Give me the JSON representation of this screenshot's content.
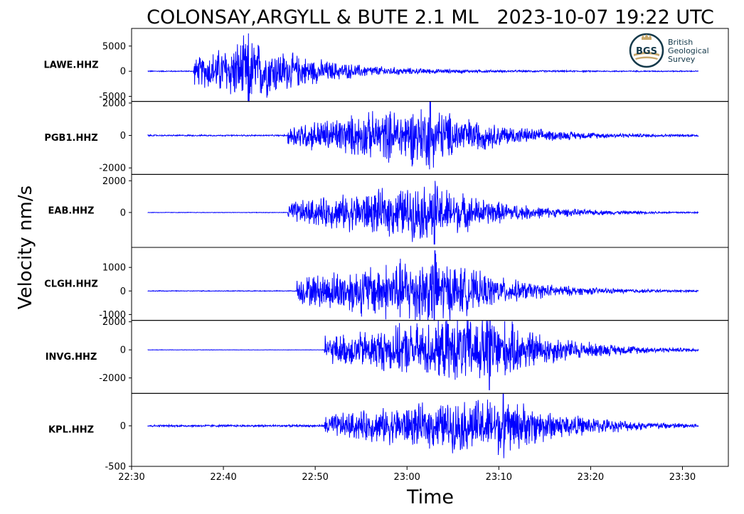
{
  "chart_data": {
    "type": "line",
    "title": "COLONSAY,ARGYLL & BUTE 2.1 ML   2023-10-07 19:22 UTC",
    "xlabel": "Time",
    "ylabel": "Velocity nm/s",
    "x_ticks": [
      "22:30",
      "22:40",
      "22:50",
      "23:00",
      "23:10",
      "23:20",
      "23:30"
    ],
    "x_range": [
      "22:30",
      "23:35"
    ],
    "trace_time_range": [
      "22:31:45",
      "23:31:45"
    ],
    "line_color": "#0000ff",
    "grid": false,
    "logo": {
      "label": "BGS",
      "text_lines": [
        "British",
        "Geological",
        "Survey"
      ]
    },
    "series": [
      {
        "name": "LAWE.HHZ",
        "ylim": [
          -6000,
          8500
        ],
        "yticks": [
          {
            "v": 5000,
            "label": "5000"
          },
          {
            "v": 0,
            "label": "0"
          },
          {
            "v": -5000,
            "label": "-5000"
          }
        ],
        "arrival": "22:36:45",
        "peak_time": "22:42:45",
        "peak": 7900,
        "noise": 120
      },
      {
        "name": "PGB1.HHZ",
        "ylim": [
          -2400,
          2100
        ],
        "yticks": [
          {
            "v": 2000,
            "label": "2000"
          },
          {
            "v": 0,
            "label": "0"
          },
          {
            "v": -2000,
            "label": "-2000"
          }
        ],
        "arrival": "22:47:00",
        "peak_time": "23:02:30",
        "peak": 2200,
        "noise": 50
      },
      {
        "name": "EAB.HHZ",
        "ylim": [
          -2200,
          2400
        ],
        "yticks": [
          {
            "v": 2000,
            "label": "2000"
          },
          {
            "v": 0,
            "label": "0"
          }
        ],
        "arrival": "22:47:00",
        "peak_time": "23:03:00",
        "peak": 2100,
        "noise": 20
      },
      {
        "name": "CLGH.HHZ",
        "ylim": [
          -1250,
          1850
        ],
        "yticks": [
          {
            "v": 1000,
            "label": "1000"
          },
          {
            "v": 0,
            "label": "0"
          },
          {
            "v": -1000,
            "label": "-1000"
          }
        ],
        "arrival": "22:48:00",
        "peak_time": "23:03:00",
        "peak": 1800,
        "noise": 20
      },
      {
        "name": "INVG.HHZ",
        "ylim": [
          -3100,
          2100
        ],
        "yticks": [
          {
            "v": 2000,
            "label": "2000"
          },
          {
            "v": 0,
            "label": "0"
          },
          {
            "v": -2000,
            "label": "-2000"
          }
        ],
        "arrival": "22:51:00",
        "peak_time": "23:09:00",
        "peak": 3000,
        "noise": 15
      },
      {
        "name": "KPL.HHZ",
        "ylim": [
          -500,
          400
        ],
        "yticks": [
          {
            "v": 0,
            "label": "0"
          },
          {
            "v": -500,
            "label": "-500"
          }
        ],
        "arrival": "22:51:00",
        "peak_time": "23:10:30",
        "peak": 420,
        "noise": 15
      }
    ]
  }
}
